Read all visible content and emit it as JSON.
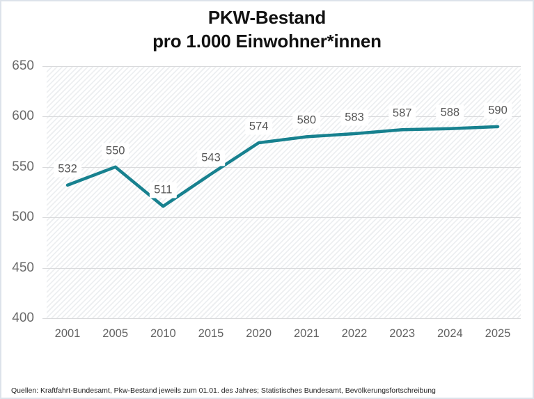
{
  "title": {
    "line1": "PKW-Bestand",
    "line2": "pro 1.000 Einwohner*innen"
  },
  "source": "Quellen: Kraftfahrt-Bundesamt, Pkw-Bestand jeweils zum 01.01. des Jahres; Statistisches Bundesamt, Bevölkerungsfortschreibung",
  "chart_data": {
    "type": "line",
    "title": "PKW-Bestand pro 1.000 Einwohner*innen",
    "categories": [
      "2001",
      "2005",
      "2010",
      "2015",
      "2020",
      "2021",
      "2022",
      "2023",
      "2024",
      "2025"
    ],
    "values": [
      532,
      550,
      511,
      543,
      574,
      580,
      583,
      587,
      588,
      590
    ],
    "xlabel": "",
    "ylabel": "",
    "ylim": [
      400,
      650
    ],
    "ytick_step": 50,
    "grid": "horizontal",
    "legend": "none",
    "data_labels": true,
    "plot_background": "diagonal-hatch"
  },
  "colors": {
    "line": "#17818f",
    "grid": "#d9dadc",
    "hatch_stripe": "#edeff1",
    "axis_text": "#6b6b6b",
    "value_label_text": "#565656",
    "title_text": "#111111",
    "border": "#dde3ea"
  }
}
